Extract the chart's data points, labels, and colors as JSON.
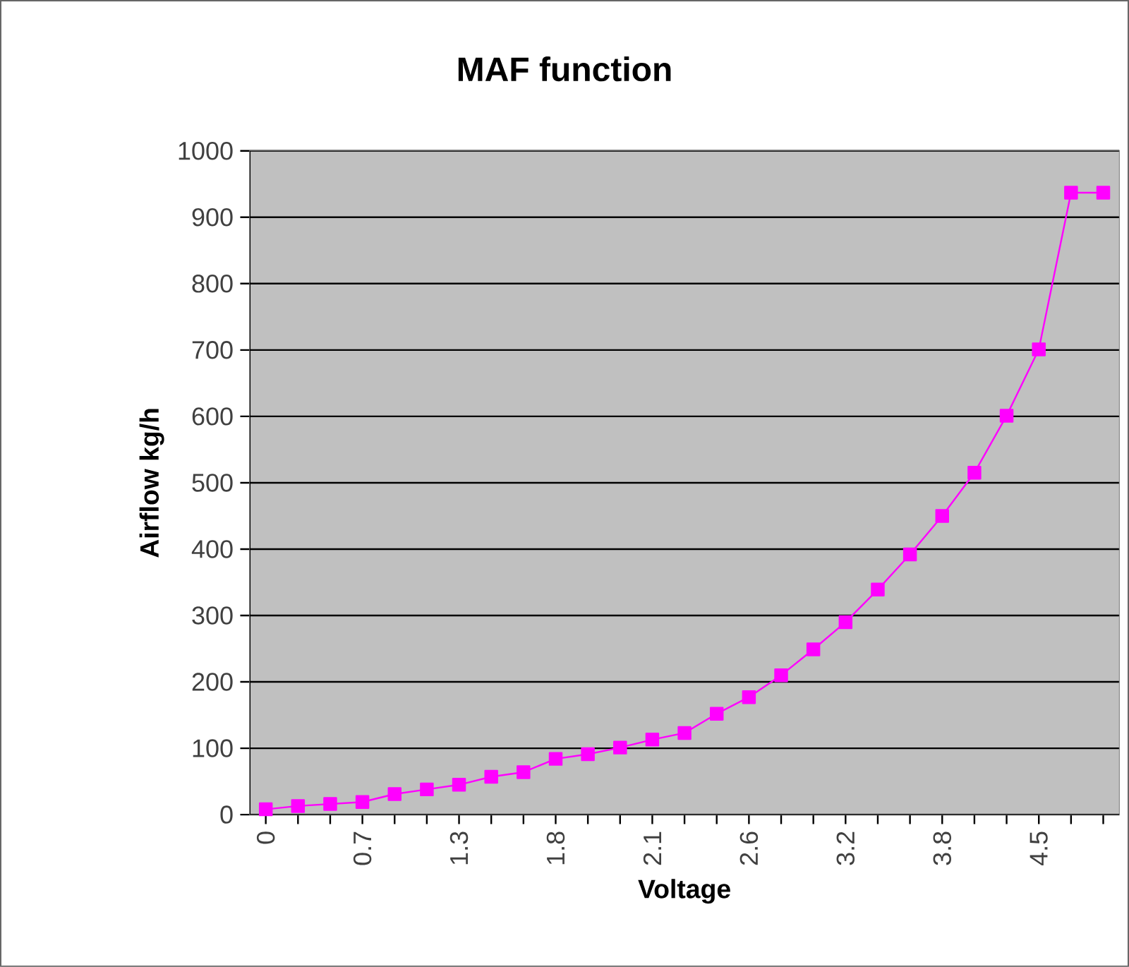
{
  "chart_data": {
    "type": "line",
    "title": "MAF function",
    "xlabel": "Voltage",
    "ylabel": "Airflow kg/h",
    "categories": [
      "0",
      null,
      null,
      "0.7",
      null,
      null,
      "1.3",
      null,
      null,
      "1.8",
      null,
      null,
      "2.1",
      null,
      null,
      "2.6",
      null,
      null,
      "3.2",
      null,
      null,
      "3.8",
      null,
      null,
      "4.5",
      null,
      null
    ],
    "series": [
      {
        "color": "#ff00ff",
        "values": [
          8,
          13,
          16,
          19,
          31,
          38,
          45,
          57,
          64,
          84,
          91,
          101,
          113,
          123,
          152,
          177,
          210,
          249,
          290,
          339,
          392,
          450,
          515,
          601,
          701,
          937,
          937
        ]
      }
    ],
    "ylim": [
      0,
      1000
    ],
    "yticks": [
      0,
      100,
      200,
      300,
      400,
      500,
      600,
      700,
      800,
      900,
      1000
    ],
    "grid": "y",
    "marker": "square",
    "line_style": "solid"
  }
}
